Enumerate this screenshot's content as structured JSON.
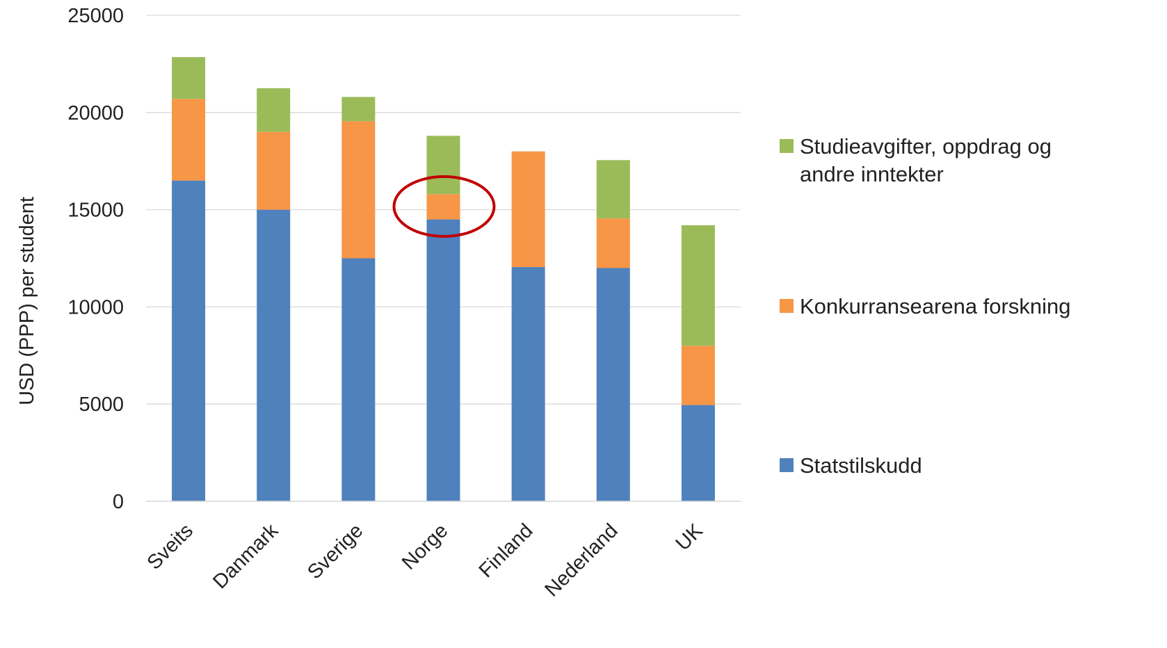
{
  "chart_data": {
    "type": "bar",
    "stacked": true,
    "categories": [
      "Sveits",
      "Danmark",
      "Sverige",
      "Norge",
      "Finland",
      "Nederland",
      "UK"
    ],
    "series": [
      {
        "name": "Statstilskudd",
        "color": "#4f81bd",
        "values": [
          16500,
          15000,
          12500,
          14500,
          12050,
          12000,
          4950
        ]
      },
      {
        "name": "Konkurransearena forskning",
        "color": "#f79646",
        "values": [
          4200,
          4000,
          7050,
          1300,
          5950,
          2550,
          3050
        ]
      },
      {
        "name": "Studieavgifter, oppdrag og andre inntekter",
        "color": "#9bbb59",
        "values": [
          2150,
          2250,
          1250,
          3000,
          0,
          3000,
          6200
        ]
      }
    ],
    "ylabel": "USD (PPP) per student",
    "ylim": [
      0,
      25000
    ],
    "yticks": [
      0,
      5000,
      10000,
      15000,
      20000,
      25000
    ],
    "grid": true,
    "legend_position": "right",
    "annotation": {
      "type": "ellipse",
      "target_category": "Norge",
      "color": "#c00000"
    }
  }
}
